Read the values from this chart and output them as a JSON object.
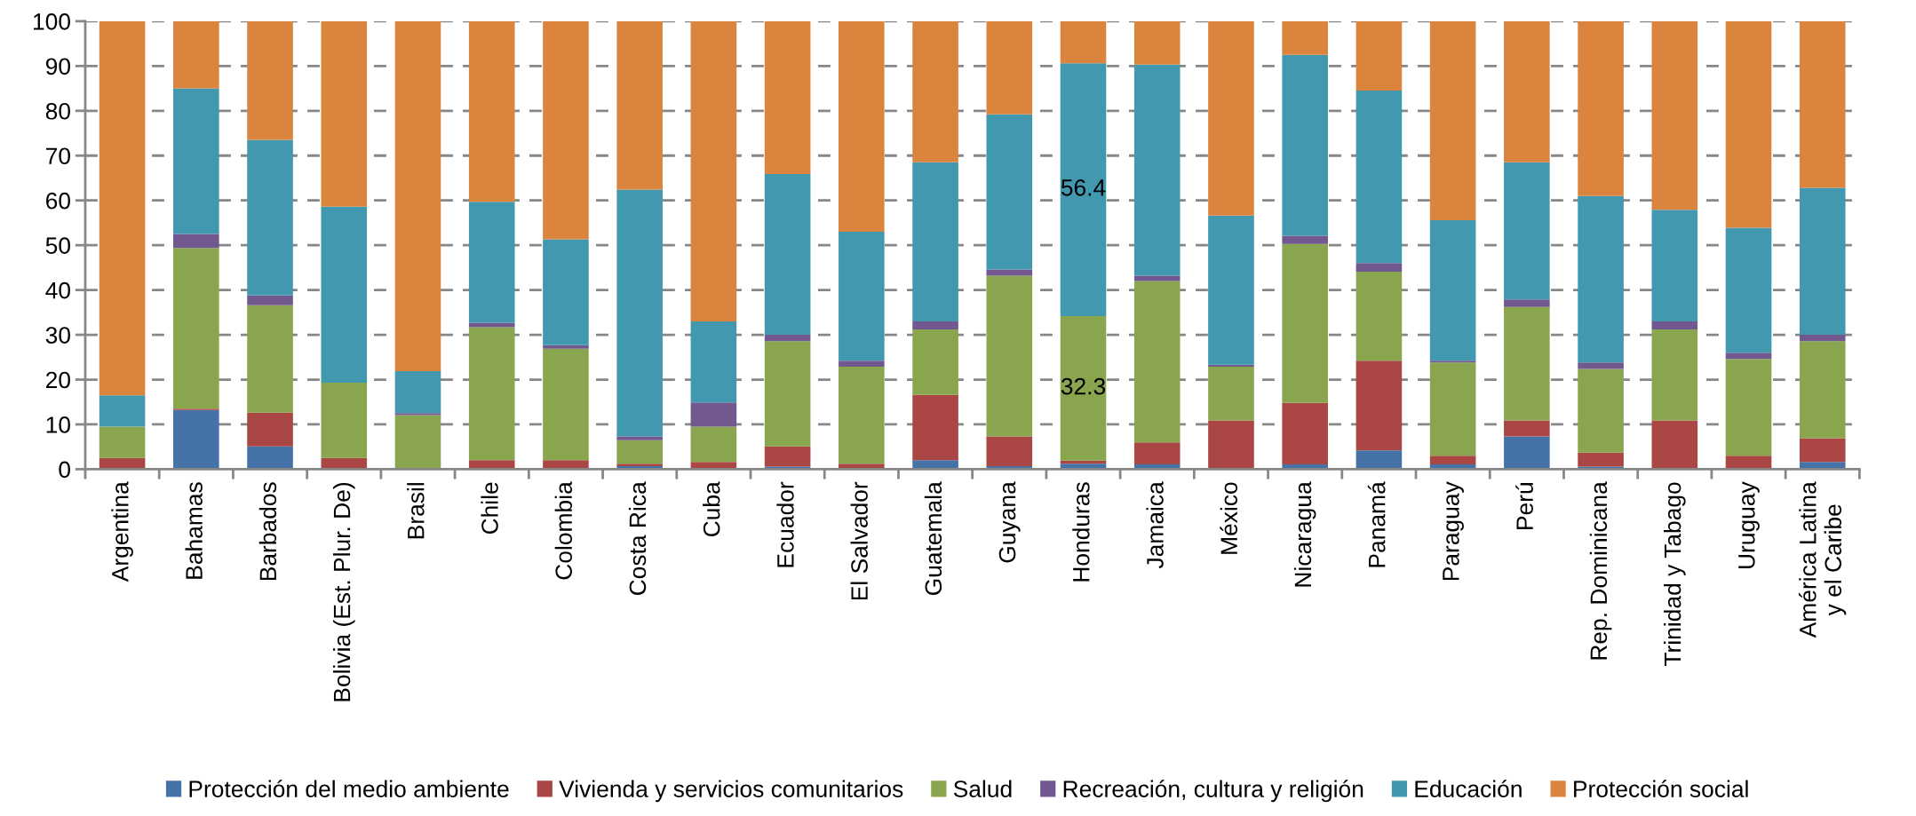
{
  "chart_data": {
    "type": "bar",
    "stacked": true,
    "categories": [
      "Argentina",
      "Bahamas",
      "Barbados",
      "Bolivia (Est. Plur. De)",
      "Brasil",
      "Chile",
      "Colombia",
      "Costa Rica",
      "Cuba",
      "Ecuador",
      "El Salvador",
      "Guatemala",
      "Guyana",
      "Honduras",
      "Jamaica",
      "México",
      "Nicaragua",
      "Panamá",
      "Paraguay",
      "Perú",
      "Rep. Dominicana",
      "Trinidad y Tabago",
      "Uruguay",
      "América Latina\ny el Caribe"
    ],
    "series": [
      {
        "name": "Protección del medio ambiente",
        "color": "#4572a7",
        "values": [
          0,
          13.2,
          5.1,
          0,
          0,
          0,
          0,
          0.7,
          0,
          0.6,
          0,
          2.0,
          0.7,
          1.2,
          1.1,
          0,
          1.1,
          4.2,
          1.1,
          7.3,
          0.6,
          0,
          0,
          1.6
        ]
      },
      {
        "name": "Vivienda y servicios comunitarios",
        "color": "#aa4643",
        "values": [
          2.5,
          0.3,
          7.5,
          2.5,
          null,
          2.0,
          2.0,
          0.5,
          1.6,
          4.5,
          1.2,
          14.6,
          6.6,
          0.7,
          4.9,
          10.9,
          13.7,
          20.0,
          1.9,
          3.6,
          3.1,
          10.9,
          3.0,
          5.3
        ]
      },
      {
        "name": "Salud",
        "color": "#89a54e",
        "values": [
          7.0,
          35.9,
          24.0,
          16.8,
          12.1,
          29.7,
          24.9,
          5.3,
          7.9,
          23.5,
          21.7,
          14.6,
          35.9,
          32.3,
          36.0,
          12.0,
          35.5,
          19.9,
          20.8,
          25.3,
          18.7,
          20.3,
          21.6,
          21.7
        ],
        "value_labels": [
          null,
          null,
          null,
          null,
          null,
          null,
          null,
          null,
          null,
          null,
          null,
          null,
          null,
          "32.3",
          null,
          null,
          null,
          null,
          null,
          null,
          null,
          null,
          null,
          null
        ]
      },
      {
        "name": "Recreación, cultura y religión",
        "color": "#71588f",
        "values": [
          null,
          3.1,
          2.2,
          null,
          0.4,
          1.0,
          0.8,
          0.8,
          5.4,
          1.4,
          1.3,
          1.8,
          1.4,
          null,
          1.2,
          0.4,
          1.8,
          1.9,
          0.4,
          1.7,
          1.4,
          1.8,
          1.4,
          1.4
        ]
      },
      {
        "name": "Educación",
        "color": "#4198af",
        "values": [
          7.0,
          32.5,
          34.7,
          39.3,
          9.4,
          27.0,
          23.6,
          55.1,
          18.1,
          35.9,
          28.8,
          35.5,
          34.6,
          56.4,
          47.1,
          33.3,
          40.4,
          38.5,
          31.4,
          30.6,
          37.2,
          24.9,
          27.9,
          32.8
        ],
        "value_labels": [
          null,
          null,
          null,
          null,
          null,
          null,
          null,
          null,
          null,
          null,
          null,
          null,
          null,
          "56.4",
          null,
          null,
          null,
          null,
          null,
          null,
          null,
          null,
          null,
          null
        ]
      },
      {
        "name": "Protección social",
        "color": "#db843d",
        "values": [
          83.5,
          15.0,
          26.5,
          41.4,
          78.1,
          40.3,
          48.7,
          37.6,
          67.0,
          34.1,
          47.0,
          31.5,
          20.8,
          9.4,
          9.7,
          43.4,
          7.5,
          15.5,
          44.4,
          31.5,
          39.0,
          42.1,
          46.1,
          37.2
        ]
      }
    ],
    "ylim": [
      0,
      100
    ],
    "yticks": [
      0,
      10,
      20,
      30,
      40,
      50,
      60,
      70,
      80,
      90,
      100
    ],
    "grid": "y",
    "legend": "bottom"
  }
}
